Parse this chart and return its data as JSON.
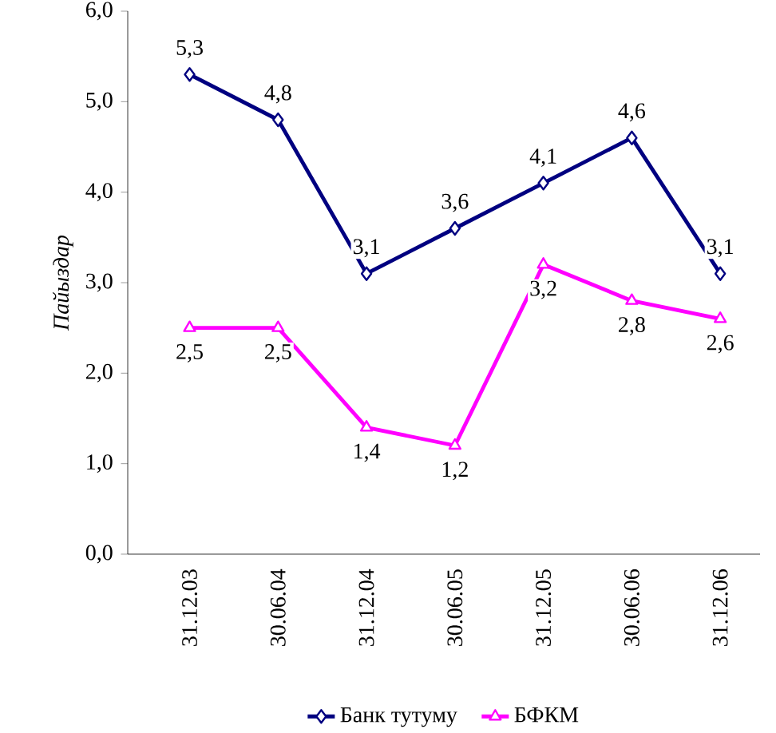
{
  "chart_data": {
    "type": "line",
    "ylabel": "Пайыздар",
    "categories": [
      "31.12.03",
      "30.06.04",
      "31.12.04",
      "30.06.05",
      "31.12.05",
      "30.06.06",
      "31.12.06"
    ],
    "series": [
      {
        "name": "Банк тутуму",
        "color": "#000080",
        "marker": "diamond",
        "values": [
          5.3,
          4.8,
          3.1,
          3.6,
          4.1,
          4.6,
          3.1
        ],
        "value_labels": [
          "5,3",
          "4,8",
          "3,1",
          "3,6",
          "4,1",
          "4,6",
          "3,1"
        ]
      },
      {
        "name": "БФКМ",
        "color": "#ff00ff",
        "marker": "triangle",
        "values": [
          2.5,
          2.5,
          1.4,
          1.2,
          3.2,
          2.8,
          2.6
        ],
        "value_labels": [
          "2,5",
          "2,5",
          "1,4",
          "1,2",
          "3,2",
          "2,8",
          "2,6"
        ]
      }
    ],
    "ylim": [
      0,
      6
    ],
    "yticks": [
      {
        "value": 0,
        "label": "0,0"
      },
      {
        "value": 1,
        "label": "1,0"
      },
      {
        "value": 2,
        "label": "2,0"
      },
      {
        "value": 3,
        "label": "3,0"
      },
      {
        "value": 4,
        "label": "4,0"
      },
      {
        "value": 5,
        "label": "5,0"
      },
      {
        "value": 6,
        "label": "6,0"
      }
    ],
    "grid": false,
    "legend": "bottom",
    "line_style": "solid"
  }
}
